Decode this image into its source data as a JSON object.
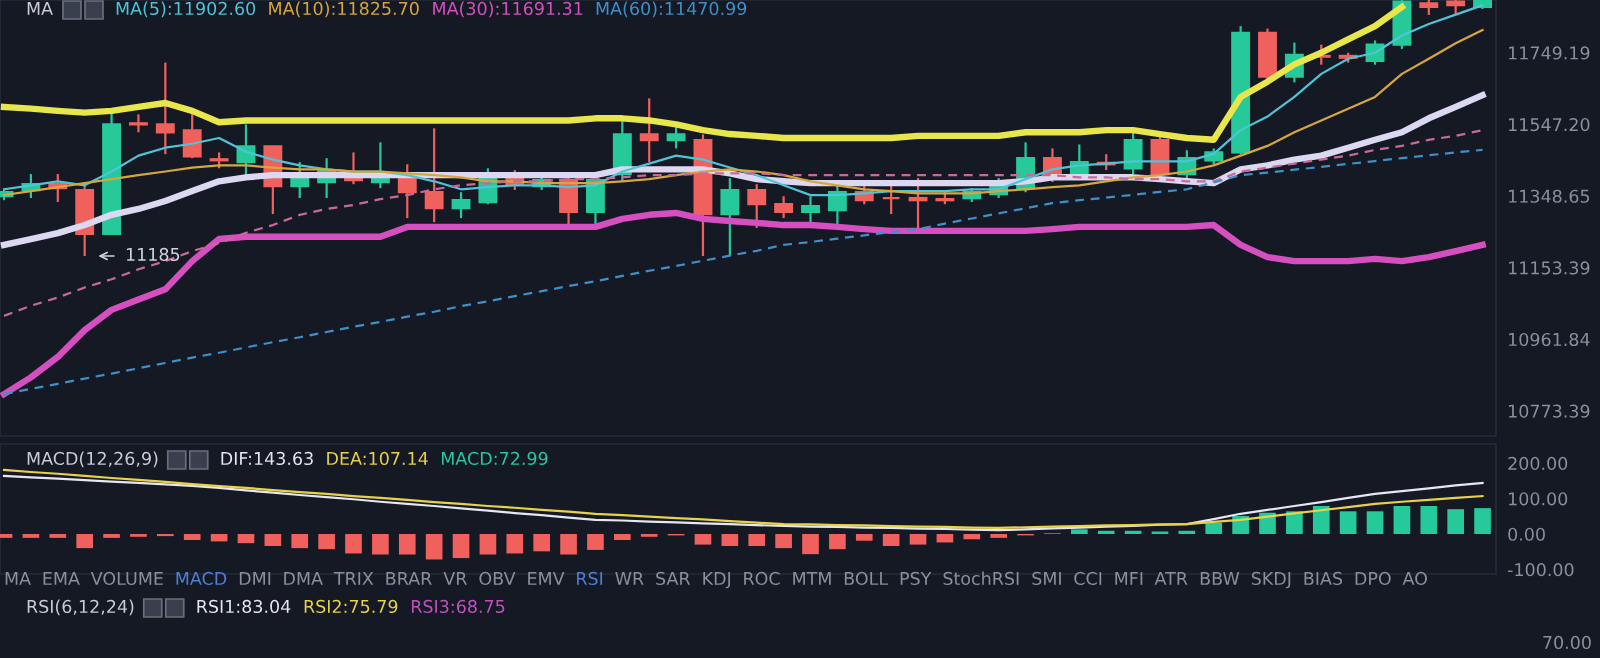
{
  "chart_data": [
    {
      "type": "candlestick",
      "title": "MA",
      "annotations": [
        "MA(5):11902.60",
        "MA(10):11825.70",
        "MA(30):11691.31",
        "MA(60):11470.99"
      ],
      "categories": [
        null,
        null,
        null,
        null,
        null,
        null,
        null,
        null,
        null,
        null,
        null,
        null,
        null,
        null,
        null,
        null,
        null,
        null,
        null,
        null,
        null,
        null,
        null,
        null,
        null,
        null,
        null,
        null,
        null,
        null,
        null,
        null,
        null,
        null,
        null,
        null,
        null,
        null,
        null,
        null,
        null,
        null,
        null,
        null,
        null,
        null,
        null,
        null,
        null,
        null,
        null,
        null,
        null,
        null,
        null,
        null
      ],
      "ohlc": [
        [
          11348,
          11365,
          11337,
          11359
        ],
        [
          11365,
          11409,
          11343,
          11381
        ],
        [
          11381,
          11409,
          11332,
          11370
        ],
        [
          11365,
          11387,
          11185,
          11245
        ],
        [
          11245,
          11591,
          11245,
          11547
        ],
        [
          11550,
          11575,
          11525,
          11547
        ],
        [
          11547,
          11721,
          11464,
          11525
        ],
        [
          11530,
          11591,
          11453,
          11458
        ],
        [
          11450,
          11469,
          11425,
          11447
        ],
        [
          11442,
          11547,
          11398,
          11486
        ],
        [
          11486,
          11486,
          11299,
          11376
        ],
        [
          11376,
          11442,
          11343,
          11409
        ],
        [
          11387,
          11453,
          11343,
          11420
        ],
        [
          11414,
          11469,
          11381,
          11392
        ],
        [
          11387,
          11497,
          11370,
          11414
        ],
        [
          11409,
          11436,
          11288,
          11359
        ],
        [
          11359,
          11536,
          11277,
          11315
        ],
        [
          11315,
          11359,
          11288,
          11337
        ],
        [
          11332,
          11425,
          11326,
          11409
        ],
        [
          11409,
          11420,
          11365,
          11381
        ],
        [
          11376,
          11403,
          11365,
          11392
        ],
        [
          11392,
          11409,
          11261,
          11305
        ],
        [
          11305,
          11409,
          11270,
          11392
        ],
        [
          11409,
          11564,
          11387,
          11519
        ],
        [
          11519,
          11620,
          11442,
          11503
        ],
        [
          11503,
          11553,
          11480,
          11519
        ],
        [
          11503,
          11519,
          11185,
          11299
        ],
        [
          11299,
          11398,
          11185,
          11365
        ],
        [
          11365,
          11381,
          11261,
          11326
        ],
        [
          11326,
          11348,
          11288,
          11305
        ],
        [
          11305,
          11348,
          11277,
          11321
        ],
        [
          11310,
          11381,
          11261,
          11359
        ],
        [
          11359,
          11387,
          11326,
          11337
        ],
        [
          11343,
          11387,
          11299,
          11343
        ],
        [
          11343,
          11398,
          11261,
          11337
        ],
        [
          11340,
          11359,
          11326,
          11337
        ],
        [
          11343,
          11370,
          11332,
          11359
        ],
        [
          11354,
          11398,
          11343,
          11381
        ],
        [
          11370,
          11497,
          11359,
          11453
        ],
        [
          11453,
          11480,
          11387,
          11409
        ],
        [
          11409,
          11491,
          11398,
          11442
        ],
        [
          11440,
          11464,
          11420,
          11436
        ],
        [
          11425,
          11536,
          11409,
          11503
        ],
        [
          11503,
          11519,
          11398,
          11409
        ],
        [
          11409,
          11475,
          11398,
          11453
        ],
        [
          11447,
          11480,
          11436,
          11469
        ],
        [
          11469,
          11825,
          11464,
          11806
        ],
        [
          11806,
          11818,
          11665,
          11681
        ],
        [
          11681,
          11778,
          11665,
          11743
        ],
        [
          11740,
          11772,
          11715,
          11738
        ],
        [
          11740,
          11749,
          11721,
          11735
        ],
        [
          11726,
          11784,
          11715,
          11772
        ],
        [
          11772,
          11900,
          11760,
          11895
        ],
        [
          11890,
          11900,
          11857,
          11880
        ],
        [
          11895,
          11900,
          11857,
          11885
        ],
        [
          11880,
          11900,
          11874,
          11898
        ]
      ],
      "colors": [
        "#26c99a",
        "#26c99a",
        "#f0605d",
        "#f0605d",
        "#26c99a",
        "#f0605d",
        "#f0605d",
        "#f0605d",
        "#f0605d",
        "#26c99a",
        "#f0605d",
        "#26c99a",
        "#26c99a",
        "#f0605d",
        "#26c99a",
        "#f0605d",
        "#f0605d",
        "#26c99a",
        "#26c99a",
        "#f0605d",
        "#26c99a",
        "#f0605d",
        "#26c99a",
        "#26c99a",
        "#f0605d",
        "#26c99a",
        "#f0605d",
        "#26c99a",
        "#f0605d",
        "#f0605d",
        "#26c99a",
        "#26c99a",
        "#f0605d",
        "#f0605d",
        "#f0605d",
        "#f0605d",
        "#26c99a",
        "#26c99a",
        "#26c99a",
        "#f0605d",
        "#26c99a",
        "#f0605d",
        "#26c99a",
        "#f0605d",
        "#26c99a",
        "#26c99a",
        "#26c99a",
        "#f0605d",
        "#26c99a",
        "#f0605d",
        "#f0605d",
        "#26c99a",
        "#26c99a",
        "#f0605d",
        "#f0605d",
        "#26c99a"
      ],
      "value_labels": [
        null,
        null,
        null,
        "11185",
        null,
        null,
        null,
        null,
        null,
        null,
        null,
        null,
        null,
        null,
        null,
        null,
        null,
        null,
        null,
        null,
        null,
        null,
        null,
        null,
        null,
        null,
        null,
        null,
        null,
        null,
        null,
        null,
        null,
        null,
        null,
        null,
        null,
        null,
        null,
        null,
        null,
        null,
        null,
        null,
        null,
        null,
        null,
        null,
        null,
        null,
        null,
        null,
        null,
        null,
        null,
        null
      ],
      "series": [
        {
          "type": "line",
          "color": "#e8e64a",
          "values": [
            11596,
            11591,
            11585,
            11580,
            11585,
            11596,
            11607,
            11585,
            11553,
            11558,
            11558,
            11558,
            11558,
            11558,
            11558,
            11558,
            11558,
            11558,
            11558,
            11558,
            11558,
            11558,
            11564,
            11564,
            11558,
            11547,
            11531,
            11520,
            11515,
            11509,
            11509,
            11509,
            11509,
            11509,
            11515,
            11515,
            11515,
            11515,
            11525,
            11525,
            11525,
            11531,
            11531,
            11520,
            11509,
            11504,
            11624,
            11667,
            11716,
            11749,
            11787,
            11825,
            11880,
            null,
            null,
            null
          ]
        },
        {
          "type": "line",
          "color": "#dcd8f2",
          "values": [
            11215,
            11231,
            11247,
            11269,
            11297,
            11313,
            11335,
            11362,
            11389,
            11400,
            11406,
            11406,
            11406,
            11406,
            11406,
            11406,
            11406,
            11406,
            11406,
            11406,
            11406,
            11406,
            11406,
            11422,
            11422,
            11422,
            11422,
            11411,
            11395,
            11389,
            11384,
            11384,
            11384,
            11384,
            11384,
            11384,
            11384,
            11384,
            11389,
            11400,
            11400,
            11400,
            11400,
            11395,
            11389,
            11384,
            11422,
            11433,
            11449,
            11460,
            11482,
            11504,
            11525,
            11564,
            11596,
            11629
          ]
        },
        {
          "type": "line",
          "color": "#d64fc0",
          "values": [
            10817,
            10861,
            10915,
            10986,
            11040,
            11068,
            11095,
            11171,
            11231,
            11237,
            11237,
            11237,
            11237,
            11237,
            11237,
            11264,
            11264,
            11264,
            11264,
            11264,
            11264,
            11264,
            11264,
            11286,
            11297,
            11302,
            11286,
            11280,
            11275,
            11269,
            11269,
            11264,
            11258,
            11253,
            11253,
            11253,
            11253,
            11253,
            11253,
            11258,
            11264,
            11264,
            11264,
            11264,
            11264,
            11269,
            11215,
            11182,
            11171,
            11171,
            11171,
            11177,
            11171,
            11182,
            11198,
            11215
          ]
        },
        {
          "type": "line",
          "color": "#4fc3d8",
          "values": [
            11367,
            11378,
            11389,
            11378,
            11416,
            11460,
            11482,
            11493,
            11509,
            11471,
            11449,
            11433,
            11422,
            11416,
            11416,
            11406,
            11389,
            11367,
            11373,
            11378,
            11378,
            11373,
            11378,
            11416,
            11438,
            11460,
            11449,
            11427,
            11406,
            11378,
            11351,
            11351,
            11356,
            11362,
            11362,
            11362,
            11367,
            11367,
            11395,
            11422,
            11433,
            11438,
            11444,
            11444,
            11444,
            11465,
            11531,
            11569,
            11624,
            11689,
            11732,
            11749,
            11798,
            11831,
            11858,
            11885
          ]
        },
        {
          "type": "line",
          "color": "#d7a63c",
          "values": [
            11351,
            11362,
            11373,
            11384,
            11395,
            11406,
            11416,
            11427,
            11433,
            11433,
            11427,
            11422,
            11422,
            11416,
            11416,
            11411,
            11406,
            11400,
            11389,
            11389,
            11384,
            11384,
            11384,
            11389,
            11395,
            11406,
            11416,
            11422,
            11416,
            11406,
            11389,
            11378,
            11367,
            11362,
            11356,
            11356,
            11356,
            11362,
            11367,
            11373,
            11378,
            11389,
            11400,
            11406,
            11416,
            11433,
            11460,
            11487,
            11525,
            11558,
            11591,
            11624,
            11689,
            11732,
            11776,
            11814
          ]
        },
        {
          "type": "line",
          "color": "#c76a9a",
          "line_style": "dashed",
          "values": [
            11024,
            11051,
            11073,
            11100,
            11122,
            11149,
            11171,
            11198,
            11220,
            11248,
            11269,
            11297,
            11313,
            11324,
            11340,
            11351,
            11367,
            11378,
            11384,
            11389,
            11389,
            11395,
            11395,
            11400,
            11406,
            11406,
            11411,
            11411,
            11411,
            11406,
            11406,
            11406,
            11406,
            11406,
            11406,
            11406,
            11406,
            11406,
            11406,
            11406,
            11400,
            11400,
            11395,
            11395,
            11389,
            11389,
            11416,
            11427,
            11438,
            11449,
            11460,
            11476,
            11487,
            11504,
            11515,
            11531
          ]
        },
        {
          "type": "line",
          "color": "#3f8fc8",
          "line_style": "dashed",
          "values": [
            10817,
            10831,
            10844,
            10858,
            10871,
            10885,
            10899,
            10913,
            10926,
            10940,
            10954,
            10967,
            10981,
            10995,
            11008,
            11022,
            11035,
            11050,
            11063,
            11077,
            11090,
            11104,
            11117,
            11131,
            11145,
            11158,
            11172,
            11186,
            11199,
            11215,
            11223,
            11232,
            11241,
            11250,
            11258,
            11273,
            11287,
            11301,
            11315,
            11329,
            11337,
            11344,
            11352,
            11360,
            11367,
            11386,
            11406,
            11413,
            11421,
            11429,
            11437,
            11445,
            11453,
            11461,
            11469,
            11476
          ]
        }
      ],
      "log": true,
      "ylim": [
        10708,
        11900
      ],
      "yticks": [
        {
          "value": 10773.39,
          "label": "10773.39"
        },
        {
          "value": 10961.84,
          "label": "10961.84"
        },
        {
          "value": 11153.39,
          "label": "11153.39"
        },
        {
          "value": 11348.65,
          "label": "11348.65"
        },
        {
          "value": 11547.2,
          "label": "11547.20"
        },
        {
          "value": 11749.19,
          "label": "11749.19"
        }
      ],
      "tick_labels": "y"
    },
    {
      "type": "bar",
      "title": "MACD(12,26,9)",
      "annotations": [
        "DIF:143.63",
        "DEA:107.14",
        "MACD:72.99"
      ],
      "categories": [
        null,
        null,
        null,
        null,
        null,
        null,
        null,
        null,
        null,
        null,
        null,
        null,
        null,
        null,
        null,
        null,
        null,
        null,
        null,
        null,
        null,
        null,
        null,
        null,
        null,
        null,
        null,
        null,
        null,
        null,
        null,
        null,
        null,
        null,
        null,
        null,
        null,
        null,
        null,
        null,
        null,
        null,
        null,
        null,
        null,
        null,
        null,
        null,
        null,
        null,
        null,
        null,
        null,
        null,
        null,
        null
      ],
      "series": [
        {
          "type": "bar",
          "values": [
            -11,
            -11,
            -11,
            -40,
            -11,
            -8,
            -6,
            -17,
            -21,
            -26,
            -34,
            -40,
            -43,
            -55,
            -58,
            -58,
            -72,
            -68,
            -58,
            -55,
            -49,
            -58,
            -45,
            -17,
            -8,
            -4,
            -30,
            -34,
            -34,
            -40,
            -57,
            -43,
            -19,
            -34,
            -30,
            -24,
            -15,
            -11,
            -4,
            2,
            13,
            9,
            9,
            7,
            9,
            32,
            51,
            60,
            64,
            79,
            64,
            64,
            79,
            79,
            70,
            73
          ],
          "colors": [
            "#f0605d",
            "#f0605d",
            "#f0605d",
            "#f0605d",
            "#f0605d",
            "#f0605d",
            "#f0605d",
            "#f0605d",
            "#f0605d",
            "#f0605d",
            "#f0605d",
            "#f0605d",
            "#f0605d",
            "#f0605d",
            "#f0605d",
            "#f0605d",
            "#f0605d",
            "#f0605d",
            "#f0605d",
            "#f0605d",
            "#f0605d",
            "#f0605d",
            "#f0605d",
            "#f0605d",
            "#f0605d",
            "#f0605d",
            "#f0605d",
            "#f0605d",
            "#f0605d",
            "#f0605d",
            "#f0605d",
            "#f0605d",
            "#f0605d",
            "#f0605d",
            "#f0605d",
            "#f0605d",
            "#f0605d",
            "#f0605d",
            "#f0605d",
            "#26c99a",
            "#26c99a",
            "#26c99a",
            "#26c99a",
            "#26c99a",
            "#26c99a",
            "#26c99a",
            "#26c99a",
            "#26c99a",
            "#26c99a",
            "#26c99a",
            "#26c99a",
            "#26c99a",
            "#26c99a",
            "#26c99a",
            "#26c99a",
            "#26c99a"
          ]
        },
        {
          "type": "line",
          "color": "#e6e6f4",
          "values": [
            164,
            160,
            156,
            152,
            148,
            144,
            140,
            136,
            130,
            123,
            117,
            110,
            104,
            98,
            91,
            85,
            79,
            72,
            66,
            59,
            53,
            46,
            40,
            38,
            35,
            33,
            30,
            28,
            25,
            23,
            21,
            20,
            18,
            17,
            15,
            14,
            12,
            11,
            13,
            16,
            18,
            21,
            23,
            26,
            28,
            42,
            57,
            68,
            79,
            90,
            102,
            113,
            121,
            129,
            137,
            144
          ]
        },
        {
          "type": "line",
          "color": "#e8d24a",
          "values": [
            181,
            175,
            170,
            164,
            158,
            153,
            147,
            141,
            135,
            130,
            124,
            118,
            113,
            107,
            102,
            96,
            90,
            85,
            79,
            74,
            68,
            63,
            57,
            53,
            49,
            45,
            41,
            36,
            32,
            28,
            27,
            25,
            24,
            22,
            21,
            20,
            18,
            17,
            19,
            21,
            22,
            24,
            25,
            27,
            28,
            34,
            40,
            49,
            58,
            67,
            76,
            85,
            91,
            96,
            102,
            107
          ]
        }
      ],
      "ylim": [
        -113,
        254
      ],
      "yticks": [
        {
          "value": -100,
          "label": "-100.00"
        },
        {
          "value": 0,
          "label": "0.00"
        },
        {
          "value": 100,
          "label": "100.00"
        },
        {
          "value": 200,
          "label": "200.00"
        }
      ],
      "tick_labels": "y"
    },
    {
      "type": "other",
      "annotations": [
        "MA",
        "EMA",
        "VOLUME",
        "MACD",
        "DMI",
        "DMA",
        "TRIX",
        "BRAR",
        "VR",
        "OBV",
        "EMV",
        "RSI",
        "WR",
        "SAR",
        "KDJ",
        "ROC",
        "MTM",
        "BOLL",
        "PSY",
        "StochRSI",
        "SMI",
        "CCI",
        "MFI",
        "ATR",
        "BBW",
        "SKDJ",
        "BIAS",
        "DPO",
        "AO"
      ]
    },
    {
      "type": "other",
      "title": "RSI(6,12,24)",
      "annotations": [
        "RSI1:83.04",
        "RSI2:75.79",
        "RSI3:68.75",
        "70.00"
      ]
    }
  ]
}
